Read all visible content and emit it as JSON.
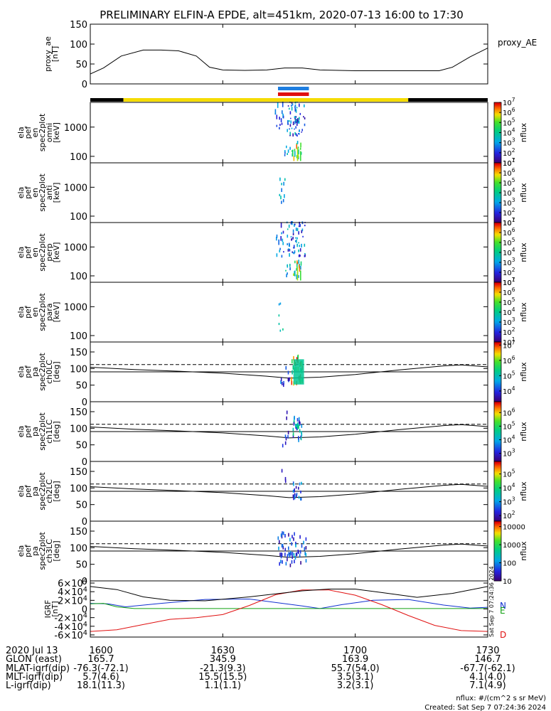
{
  "title": "PRELIMINARY ELFIN-A EPDE, alt=451km, 2020-07-13 16:00 to 17:30",
  "footer": {
    "units": "nflux: #/(cm^2 s sr MeV)",
    "created": "Created: Sat Sep  7 07:24:36 2024",
    "side_stamp": "Sat Sep  7 07:24:36 2024"
  },
  "time_axis": {
    "ticks": [
      "1600",
      "1630",
      "1700",
      "1730"
    ],
    "tick_minutes": [
      0,
      30,
      60,
      90
    ],
    "range_minutes": [
      0,
      90
    ]
  },
  "orbit_table": {
    "rows": [
      {
        "label": "2020 Jul 13",
        "values": [
          "1600",
          "1630",
          "1700",
          "1730"
        ]
      },
      {
        "label": "GLON (east)",
        "values": [
          "165.7",
          "345.9",
          "163.9",
          "146.7"
        ]
      },
      {
        "label": "MLAT-igrf(dip)",
        "values": [
          "-76.3(-72.1)",
          "-21.3(9.3)",
          "55.7(54.0)",
          "-67.7(-62.1)"
        ]
      },
      {
        "label": "MLT-igrf(dip)",
        "values": [
          "5.7(4.6)",
          "15.5(15.5)",
          "3.5(3.1)",
          "4.1(4.0)"
        ]
      },
      {
        "label": "L-igrf(dip)",
        "values": [
          "18.1(11.3)",
          "1.1(1.1)",
          "3.2(3.1)",
          "7.1(4.9)"
        ]
      }
    ]
  },
  "status_bars": {
    "science_zones": [
      {
        "start_min": 42.5,
        "end_min": 49.5,
        "color": "#1e7ee0"
      },
      {
        "start_min": 42.5,
        "end_min": 49.5,
        "color": "#e01010"
      }
    ],
    "orbit_bar": [
      {
        "start_min": 0,
        "end_min": 7.5,
        "color": "#000000"
      },
      {
        "start_min": 7.5,
        "end_min": 72,
        "color": "#f5dc00"
      },
      {
        "start_min": 72,
        "end_min": 90,
        "color": "#000000"
      }
    ]
  },
  "chart_data": [
    {
      "type": "line",
      "panel": "proxy_ae",
      "ylabel_lines": [
        "proxy_ae",
        "[nT]"
      ],
      "series_label": "proxy_AE",
      "ylim": [
        0,
        150
      ],
      "yticks": [
        "0",
        "50",
        "100",
        "150"
      ],
      "ytick_values": [
        0,
        50,
        100,
        150
      ],
      "x_min": [
        0,
        3,
        7,
        12,
        16,
        20,
        24,
        27,
        30,
        35,
        40,
        44,
        48,
        52,
        60,
        70,
        79,
        82,
        86,
        90
      ],
      "y": [
        25,
        40,
        70,
        85,
        85,
        83,
        70,
        42,
        35,
        34,
        35,
        40,
        40,
        35,
        33,
        33,
        33,
        42,
        68,
        90
      ]
    },
    {
      "type": "heatmap",
      "panel": "omni",
      "ylabel_lines": [
        "ela",
        "pef",
        "en",
        "spec2plot",
        "omni",
        "[keV]"
      ],
      "yscale": "log",
      "ylim": [
        60,
        7000
      ],
      "yticks": [
        "100",
        "1000"
      ],
      "ytick_values": [
        100,
        1000
      ],
      "colorbar": {
        "label": "nflux",
        "ticks": [
          "10^1",
          "10^2",
          "10^3",
          "10^4",
          "10^5",
          "10^6",
          "10^7"
        ],
        "tick_log": [
          1,
          2,
          3,
          4,
          5,
          6,
          7
        ],
        "log_range": [
          1,
          7
        ]
      }
    },
    {
      "type": "heatmap",
      "panel": "anti",
      "ylabel_lines": [
        "ela",
        "pef",
        "en",
        "spec2plot",
        "anti",
        "[keV]"
      ],
      "yscale": "log",
      "ylim": [
        60,
        7000
      ],
      "yticks": [
        "100",
        "1000"
      ],
      "ytick_values": [
        100,
        1000
      ],
      "colorbar": {
        "label": "nflux",
        "ticks": [
          "10^1",
          "10^2",
          "10^3",
          "10^4",
          "10^5",
          "10^6",
          "10^7"
        ],
        "tick_log": [
          1,
          2,
          3,
          4,
          5,
          6,
          7
        ],
        "log_range": [
          1,
          7
        ]
      }
    },
    {
      "type": "heatmap",
      "panel": "perp",
      "ylabel_lines": [
        "ela",
        "pef",
        "en",
        "spec2plot",
        "perp",
        "[keV]"
      ],
      "yscale": "log",
      "ylim": [
        60,
        7000
      ],
      "yticks": [
        "100",
        "1000"
      ],
      "ytick_values": [
        100,
        1000
      ],
      "colorbar": {
        "label": "nflux",
        "ticks": [
          "10^1",
          "10^2",
          "10^3",
          "10^4",
          "10^5",
          "10^6",
          "10^7"
        ],
        "tick_log": [
          1,
          2,
          3,
          4,
          5,
          6,
          7
        ],
        "log_range": [
          1,
          7
        ]
      }
    },
    {
      "type": "heatmap",
      "panel": "para",
      "ylabel_lines": [
        "ela",
        "pef",
        "en",
        "spec2plot",
        "para",
        "[keV]"
      ],
      "yscale": "log",
      "ylim": [
        60,
        7000
      ],
      "yticks": [
        "100",
        "1000"
      ],
      "ytick_values": [
        100,
        1000
      ],
      "colorbar": {
        "label": "nflux",
        "ticks": [
          "10^1",
          "10^2",
          "10^3",
          "10^4",
          "10^5",
          "10^6",
          "10^7"
        ],
        "tick_log": [
          1,
          2,
          3,
          4,
          5,
          6,
          7
        ],
        "log_range": [
          1,
          7
        ]
      }
    },
    {
      "type": "heatmap",
      "panel": "ch0LC",
      "ylabel_lines": [
        "ela",
        "pef",
        "pa",
        "spec2plot",
        "ch0LC",
        "[deg]"
      ],
      "ylim": [
        0,
        180
      ],
      "yticks": [
        "0",
        "50",
        "100",
        "150"
      ],
      "ytick_values": [
        0,
        50,
        100,
        150
      ],
      "colorbar": {
        "label": "nflux",
        "ticks": [
          "10^4",
          "10^5",
          "10^6",
          "10^7"
        ],
        "tick_log": [
          4,
          5,
          6,
          7
        ],
        "log_range": [
          3.3,
          7.2
        ]
      }
    },
    {
      "type": "heatmap",
      "panel": "ch1LC",
      "ylabel_lines": [
        "ela",
        "pef",
        "pa",
        "spec2plot",
        "ch1LC",
        "[deg]"
      ],
      "ylim": [
        0,
        180
      ],
      "yticks": [
        "0",
        "50",
        "100",
        "150"
      ],
      "ytick_values": [
        0,
        50,
        100,
        150
      ],
      "colorbar": {
        "label": "nflux",
        "ticks": [
          "10^3",
          "10^4",
          "10^5",
          "10^6"
        ],
        "tick_log": [
          3,
          4,
          5,
          6
        ],
        "log_range": [
          2.4,
          6.8
        ]
      }
    },
    {
      "type": "heatmap",
      "panel": "ch2LC",
      "ylabel_lines": [
        "ela",
        "pef",
        "pa",
        "spec2plot",
        "ch2LC",
        "[deg]"
      ],
      "ylim": [
        0,
        180
      ],
      "yticks": [
        "0",
        "50",
        "100",
        "150"
      ],
      "ytick_values": [
        0,
        50,
        100,
        150
      ],
      "colorbar": {
        "label": "nflux",
        "ticks": [
          "10^2",
          "10^3",
          "10^4",
          "10^5"
        ],
        "tick_log": [
          2,
          3,
          4,
          5
        ],
        "log_range": [
          1.6,
          5.9
        ]
      }
    },
    {
      "type": "heatmap",
      "panel": "ch3LC",
      "ylabel_lines": [
        "ela",
        "pef",
        "pa",
        "spec2plot",
        "ch3LC",
        "[deg]"
      ],
      "ylim": [
        0,
        180
      ],
      "yticks": [
        "0",
        "50",
        "100",
        "150"
      ],
      "ytick_values": [
        0,
        50,
        100,
        150
      ],
      "colorbar": {
        "label": "nflux",
        "ticks": [
          "10",
          "100",
          "1000",
          "10000"
        ],
        "tick_log": [
          1,
          2,
          3,
          4
        ],
        "log_range": [
          1,
          4.3
        ]
      }
    },
    {
      "type": "line",
      "panel": "igrf",
      "ylabel_lines": [
        "IGRF",
        "[nT]"
      ],
      "ylim": [
        -65000,
        65000
      ],
      "yticks": [
        "-6×10^4",
        "-4×10^4",
        "-2×10^4",
        "0",
        "2×10^4",
        "4×10^4",
        "6×10^4"
      ],
      "ytick_values": [
        -60000,
        -40000,
        -20000,
        0,
        20000,
        40000,
        60000
      ],
      "series": [
        {
          "name": "N",
          "color": "#1030d0",
          "x_min": [
            0,
            4,
            8,
            16,
            26,
            36,
            48,
            52,
            57,
            64,
            72,
            80,
            86,
            90
          ],
          "y": [
            13000,
            12000,
            5000,
            13000,
            22000,
            23000,
            7000,
            1000,
            10000,
            20000,
            22000,
            9000,
            2000,
            4000
          ]
        },
        {
          "name": "E",
          "color": "#10a010",
          "x_min": [
            0,
            3,
            6,
            10,
            20,
            40,
            60,
            80,
            90
          ],
          "y": [
            12000,
            13000,
            5000,
            1000,
            1000,
            1000,
            1000,
            1000,
            1000
          ]
        },
        {
          "name": "D",
          "color": "#e01010",
          "x_min": [
            0,
            6,
            12,
            18,
            24,
            30,
            36,
            42,
            48,
            54,
            60,
            66,
            72,
            78,
            84,
            90
          ],
          "y": [
            -52000,
            -48000,
            -36000,
            -24000,
            -20000,
            -13000,
            8000,
            33000,
            44000,
            44000,
            32000,
            10000,
            -15000,
            -38000,
            -50000,
            -52000
          ]
        },
        {
          "name": "",
          "color": "#000000",
          "x_min": [
            0,
            6,
            12,
            18,
            26,
            36,
            48,
            54,
            60,
            66,
            74,
            82,
            90
          ],
          "y": [
            52000,
            45000,
            28000,
            20000,
            19000,
            28000,
            42000,
            46000,
            46000,
            38000,
            27000,
            36000,
            52000
          ]
        }
      ]
    }
  ]
}
